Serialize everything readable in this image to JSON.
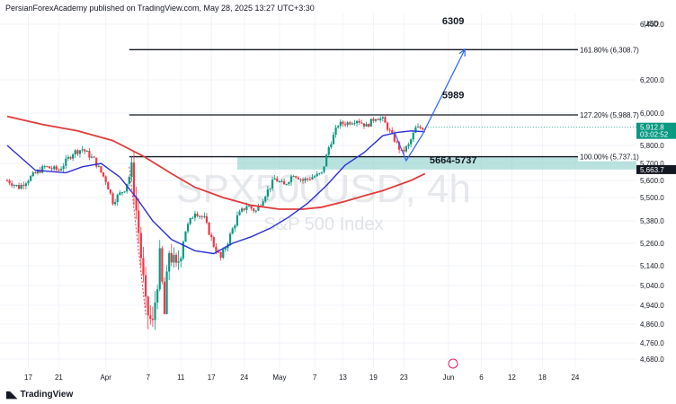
{
  "header": {
    "published": "PersianForexAcademy published on TradingView.com, May 28, 2025 13:27 UTC+3:30"
  },
  "footer": {
    "brand": "TradingView",
    "logo_icon": "tradingview-logo-icon"
  },
  "watermark": {
    "symbol": "SPX500USD, 4h",
    "name": "S&P 500 Index"
  },
  "chart_data": {
    "type": "candlestick",
    "currency": "USD",
    "ylim": [
      4620,
      6500
    ],
    "y_ticks": [
      "6,400.0",
      "6,200.0",
      "6,000.0",
      "5,800.0",
      "5,700.0",
      "5,600.0",
      "5,500.0",
      "5,380.0",
      "5,260.0",
      "5,140.0",
      "5,040.0",
      "4,940.0",
      "4,860.0",
      "4,760.0",
      "4,680.0"
    ],
    "y_tick_values": [
      6400,
      6200,
      6000,
      5800,
      5700,
      5600,
      5500,
      5380,
      5260,
      5140,
      5040,
      4940,
      4860,
      4760,
      4680
    ],
    "x_ticks": [
      "17",
      "21",
      "Apr",
      "7",
      "11",
      "17",
      "24",
      "May",
      "7",
      "13",
      "19",
      "23",
      "Jun",
      "6",
      "12",
      "18",
      "24"
    ],
    "x_tick_index": [
      9,
      22,
      42,
      60,
      74,
      87,
      101,
      116,
      131,
      143,
      156,
      169,
      188,
      202,
      215,
      228,
      242
    ],
    "x_range": [
      0,
      265
    ],
    "fib_levels": [
      {
        "label": "161.80% (6,308.7)",
        "value": 6308.7,
        "ratio": "161.80%",
        "x_start": 52
      },
      {
        "label": "127.20% (5,988.7)",
        "value": 5988.7,
        "ratio": "127.20%",
        "x_start": 52
      },
      {
        "label": "100.00% (5,737.1)",
        "value": 5737.1,
        "ratio": "100.00%",
        "x_start": 52
      }
    ],
    "annotations": [
      {
        "text": "6309",
        "x": 190,
        "y": 6400
      },
      {
        "text": "5989",
        "x": 190,
        "y": 6090
      },
      {
        "text": "5664-5737",
        "x": 190,
        "y": 5700
      }
    ],
    "zone": {
      "low": 5664,
      "high": 5737,
      "x_start": 98,
      "x_end": 265,
      "color": "#80cbc4"
    },
    "price_labels": [
      {
        "value": 5912.8,
        "text": "5,912.8",
        "timer": "03:02:52",
        "color": "#089981"
      },
      {
        "value": 5663.7,
        "text": "5,663.7",
        "color": "#131722"
      }
    ],
    "projection_arrow": {
      "points": [
        [
          165,
          5880
        ],
        [
          170,
          5715
        ],
        [
          177,
          5870
        ],
        [
          195,
          6310
        ]
      ],
      "color": "#2962ff"
    },
    "dotted_line": {
      "points": [
        [
          52,
          5680
        ],
        [
          59,
          4900
        ]
      ],
      "color": "#f23645"
    },
    "colors": {
      "up": "#089981",
      "down": "#f23645",
      "ma_fast": "#2d2fd6",
      "ma_slow": "#e03b3b"
    },
    "ohlc_key_points": [
      [
        0,
        5600
      ],
      [
        5,
        5560
      ],
      [
        10,
        5620
      ],
      [
        16,
        5680
      ],
      [
        22,
        5660
      ],
      [
        28,
        5760
      ],
      [
        32,
        5780
      ],
      [
        37,
        5720
      ],
      [
        42,
        5600
      ],
      [
        45,
        5480
      ],
      [
        50,
        5550
      ],
      [
        53,
        5660
      ],
      [
        56,
        5320
      ],
      [
        59,
        4930
      ],
      [
        62,
        4850
      ],
      [
        65,
        5180
      ],
      [
        67,
        4900
      ],
      [
        69,
        5220
      ],
      [
        72,
        5120
      ],
      [
        76,
        5330
      ],
      [
        80,
        5430
      ],
      [
        84,
        5390
      ],
      [
        88,
        5250
      ],
      [
        91,
        5180
      ],
      [
        94,
        5270
      ],
      [
        98,
        5400
      ],
      [
        102,
        5460
      ],
      [
        106,
        5430
      ],
      [
        110,
        5520
      ],
      [
        114,
        5610
      ],
      [
        118,
        5570
      ],
      [
        122,
        5640
      ],
      [
        126,
        5600
      ],
      [
        130,
        5620
      ],
      [
        134,
        5640
      ],
      [
        137,
        5790
      ],
      [
        141,
        5930
      ],
      [
        145,
        5940
      ],
      [
        149,
        5960
      ],
      [
        153,
        5920
      ],
      [
        157,
        5975
      ],
      [
        160,
        5960
      ],
      [
        164,
        5860
      ],
      [
        168,
        5760
      ],
      [
        171,
        5800
      ],
      [
        174,
        5905
      ],
      [
        178,
        5912
      ]
    ],
    "ma_fast_points": [
      [
        0,
        5800
      ],
      [
        12,
        5660
      ],
      [
        25,
        5645
      ],
      [
        32,
        5680
      ],
      [
        40,
        5700
      ],
      [
        48,
        5620
      ],
      [
        55,
        5500
      ],
      [
        62,
        5380
      ],
      [
        70,
        5280
      ],
      [
        80,
        5220
      ],
      [
        88,
        5205
      ],
      [
        96,
        5260
      ],
      [
        104,
        5295
      ],
      [
        112,
        5340
      ],
      [
        120,
        5400
      ],
      [
        128,
        5470
      ],
      [
        136,
        5570
      ],
      [
        144,
        5690
      ],
      [
        152,
        5760
      ],
      [
        160,
        5860
      ],
      [
        166,
        5880
      ],
      [
        172,
        5890
      ],
      [
        178,
        5885
      ]
    ],
    "ma_slow_points": [
      [
        0,
        5980
      ],
      [
        15,
        5930
      ],
      [
        30,
        5890
      ],
      [
        45,
        5830
      ],
      [
        58,
        5740
      ],
      [
        70,
        5640
      ],
      [
        80,
        5560
      ],
      [
        92,
        5500
      ],
      [
        104,
        5460
      ],
      [
        116,
        5440
      ],
      [
        126,
        5440
      ],
      [
        134,
        5450
      ],
      [
        144,
        5480
      ],
      [
        152,
        5510
      ],
      [
        160,
        5540
      ],
      [
        166,
        5570
      ],
      [
        172,
        5600
      ],
      [
        178,
        5640
      ]
    ]
  }
}
